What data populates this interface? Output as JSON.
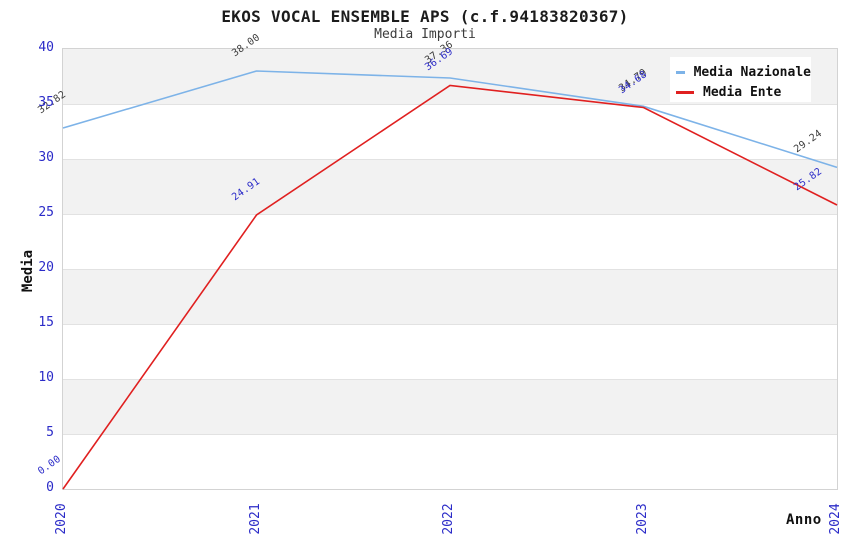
{
  "chart_data": {
    "type": "line",
    "title": "EKOS VOCAL ENSEMBLE APS (c.f.94183820367)",
    "subtitle": "Media Importi",
    "xlabel": "Anno",
    "ylabel": "Media",
    "x": [
      "2020",
      "2021",
      "2022",
      "2023",
      "2024"
    ],
    "ylim": [
      0,
      40
    ],
    "ytick_step": 5,
    "grid": "horizontal gridlines every 5 units, alternating gray/white bands",
    "legend_position": "top-right",
    "series": [
      {
        "name": "Media Nazionale",
        "color": "#7db3e8",
        "label_color": "#3d3d3d",
        "values": [
          32.82,
          38.0,
          37.36,
          34.79,
          29.24
        ]
      },
      {
        "name": "Media Ente",
        "color": "#e02020",
        "label_color": "#2b2bc8",
        "values": [
          0.0,
          24.91,
          36.69,
          34.68,
          25.82
        ]
      }
    ]
  },
  "colors": {
    "tick_label": "#2b2bc8",
    "band_gray": "#f2f2f2",
    "grid_line": "#e2e2e2",
    "plot_border": "#d3d3d3",
    "background": "#ffffff"
  }
}
